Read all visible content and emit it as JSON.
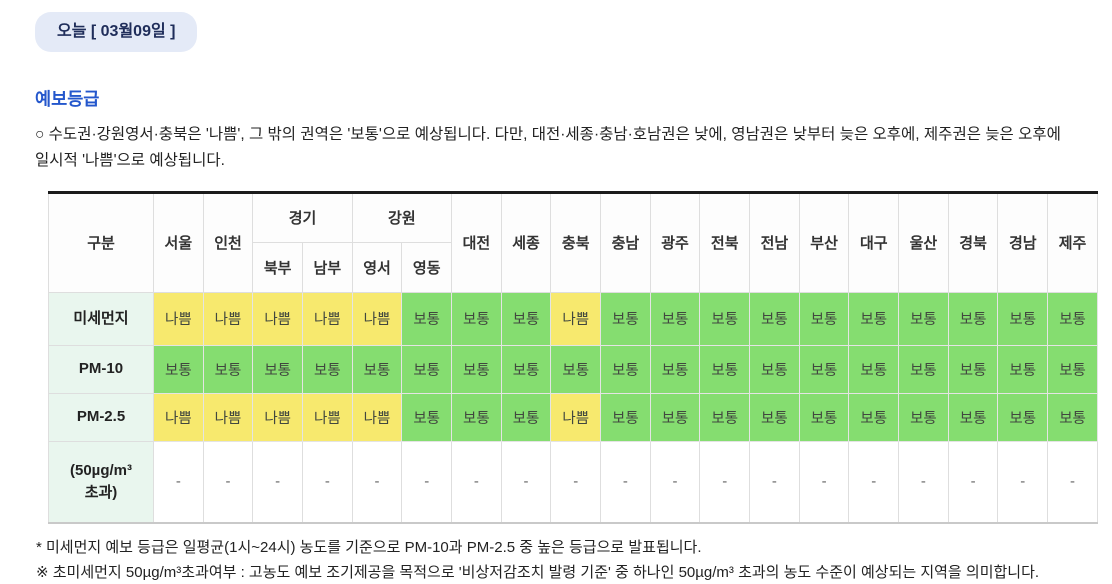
{
  "page": {
    "date_tab": "오늘 [ 03월09일 ]",
    "section_title": "예보등급",
    "summary": "○ 수도권·강원영서·충북은 '나쁨', 그 밖의 권역은 '보통'으로 예상됩니다. 다만, 대전·세종·충남·호남권은 낮에, 영남권은 낮부터 늦은 오후에, 제주권은 늦은 오후에 일시적 '나쁨'으로 예상됩니다.",
    "footnotes": [
      "* 미세먼지 예보 등급은 일평균(1시~24시) 농도를 기준으로 PM-10과 PM-2.5 중 높은 등급으로 발표됩니다.",
      "※ 초미세먼지 50µg/m³초과여부 : 고농도 예보 조기제공을 목적으로 '비상저감조치 발령 기준' 중 하나인 50µg/m³ 초과의 농도 수준이 예상되는 지역을 의미합니다."
    ]
  },
  "colors": {
    "status_bad": "#f7e96e",
    "status_moderate": "#85dd70",
    "row_header_bg": "#e9f6ee",
    "accent_blue": "#2457cc",
    "badge_bg": "#e4eaf7",
    "badge_text": "#1f2d5a"
  },
  "table": {
    "header_row1": [
      {
        "label": "구분",
        "rowspan": 2
      },
      {
        "label": "서울",
        "rowspan": 2
      },
      {
        "label": "인천",
        "rowspan": 2
      },
      {
        "label": "경기",
        "colspan": 2
      },
      {
        "label": "강원",
        "colspan": 2
      },
      {
        "label": "대전",
        "rowspan": 2
      },
      {
        "label": "세종",
        "rowspan": 2
      },
      {
        "label": "충북",
        "rowspan": 2
      },
      {
        "label": "충남",
        "rowspan": 2
      },
      {
        "label": "광주",
        "rowspan": 2
      },
      {
        "label": "전북",
        "rowspan": 2
      },
      {
        "label": "전남",
        "rowspan": 2
      },
      {
        "label": "부산",
        "rowspan": 2
      },
      {
        "label": "대구",
        "rowspan": 2
      },
      {
        "label": "울산",
        "rowspan": 2
      },
      {
        "label": "경북",
        "rowspan": 2
      },
      {
        "label": "경남",
        "rowspan": 2
      },
      {
        "label": "제주",
        "rowspan": 2
      }
    ],
    "header_row2": [
      "북부",
      "남부",
      "영서",
      "영동"
    ],
    "status_colors": {
      "나쁨": "#f7e96e",
      "보통": "#85dd70"
    },
    "rows": [
      {
        "label": "미세먼지",
        "cells": [
          "나쁨",
          "나쁨",
          "나쁨",
          "나쁨",
          "나쁨",
          "보통",
          "보통",
          "보통",
          "나쁨",
          "보통",
          "보통",
          "보통",
          "보통",
          "보통",
          "보통",
          "보통",
          "보통",
          "보통",
          "보통"
        ]
      },
      {
        "label": "PM-10",
        "cells": [
          "보통",
          "보통",
          "보통",
          "보통",
          "보통",
          "보통",
          "보통",
          "보통",
          "보통",
          "보통",
          "보통",
          "보통",
          "보통",
          "보통",
          "보통",
          "보통",
          "보통",
          "보통",
          "보통"
        ]
      },
      {
        "label": "PM-2.5",
        "cells": [
          "나쁨",
          "나쁨",
          "나쁨",
          "나쁨",
          "나쁨",
          "보통",
          "보통",
          "보통",
          "나쁨",
          "보통",
          "보통",
          "보통",
          "보통",
          "보통",
          "보통",
          "보통",
          "보통",
          "보통",
          "보통"
        ]
      },
      {
        "label": "(50µg/m³ 초과)",
        "cells": [
          "-",
          "-",
          "-",
          "-",
          "-",
          "-",
          "-",
          "-",
          "-",
          "-",
          "-",
          "-",
          "-",
          "-",
          "-",
          "-",
          "-",
          "-",
          "-"
        ]
      }
    ]
  }
}
